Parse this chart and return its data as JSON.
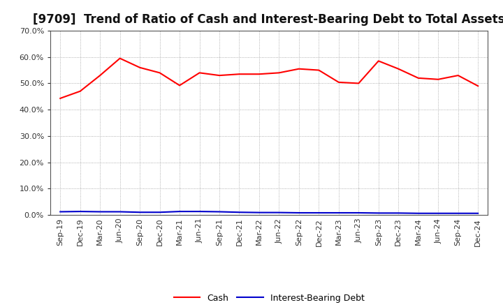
{
  "title": "[9709]  Trend of Ratio of Cash and Interest-Bearing Debt to Total Assets",
  "x_labels": [
    "Sep-19",
    "Dec-19",
    "Mar-20",
    "Jun-20",
    "Sep-20",
    "Dec-20",
    "Mar-21",
    "Jun-21",
    "Sep-21",
    "Dec-21",
    "Mar-22",
    "Jun-22",
    "Sep-22",
    "Dec-22",
    "Mar-23",
    "Jun-23",
    "Sep-23",
    "Dec-23",
    "Mar-24",
    "Jun-24",
    "Sep-24",
    "Dec-24"
  ],
  "cash": [
    0.443,
    0.47,
    0.53,
    0.595,
    0.56,
    0.54,
    0.492,
    0.54,
    0.53,
    0.535,
    0.535,
    0.54,
    0.555,
    0.55,
    0.504,
    0.5,
    0.585,
    0.555,
    0.52,
    0.515,
    0.53,
    0.49
  ],
  "interest_bearing_debt": [
    0.012,
    0.013,
    0.012,
    0.012,
    0.01,
    0.01,
    0.013,
    0.013,
    0.012,
    0.01,
    0.009,
    0.009,
    0.008,
    0.008,
    0.008,
    0.008,
    0.007,
    0.007,
    0.006,
    0.006,
    0.006,
    0.006
  ],
  "cash_color": "#ff0000",
  "debt_color": "#0000cc",
  "ylim": [
    0.0,
    0.7
  ],
  "yticks": [
    0.0,
    0.1,
    0.2,
    0.3,
    0.4,
    0.5,
    0.6,
    0.7
  ],
  "background_color": "#ffffff",
  "plot_bg_color": "#ffffff",
  "grid_color": "#999999",
  "title_fontsize": 12,
  "tick_fontsize": 8,
  "legend_labels": [
    "Cash",
    "Interest-Bearing Debt"
  ]
}
